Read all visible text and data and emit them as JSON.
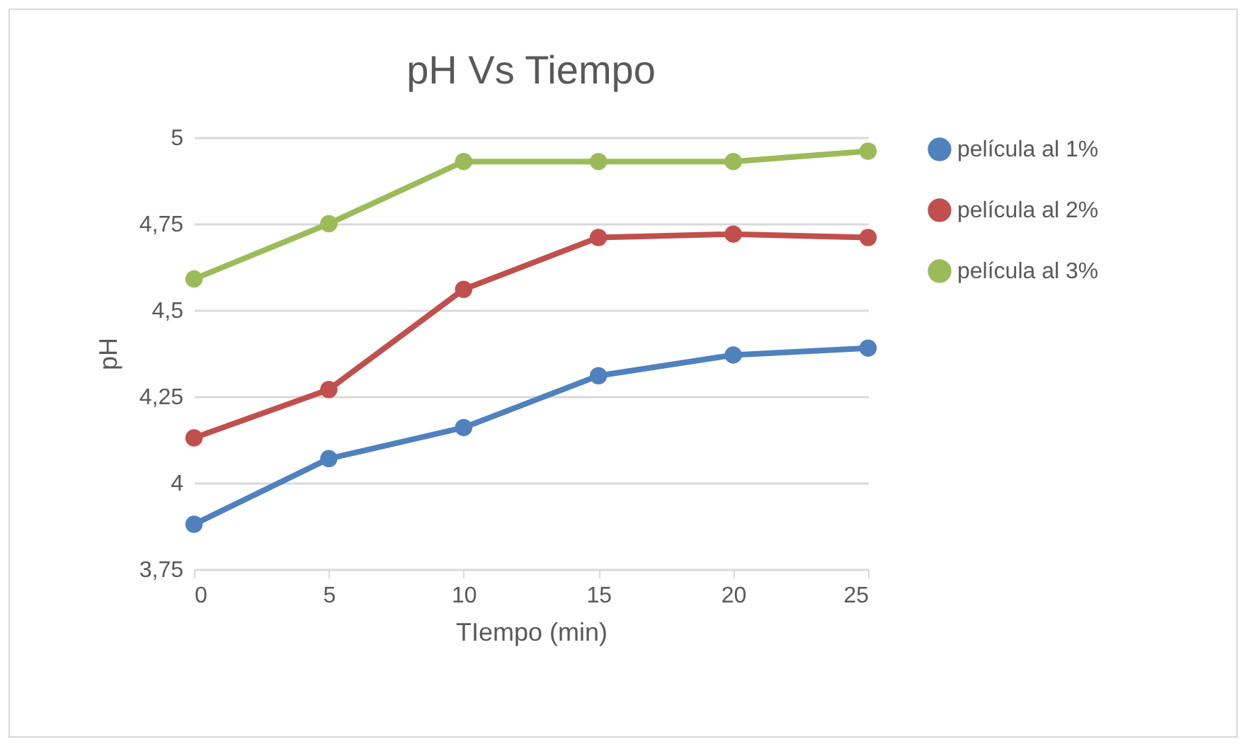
{
  "chart_data": {
    "type": "line",
    "title": "pH Vs Tiempo",
    "xlabel": "TIempo (min)",
    "ylabel": "pH",
    "x": [
      0,
      5,
      10,
      15,
      20,
      25
    ],
    "series": [
      {
        "name": "película al 1%",
        "color": "#4f81bd",
        "values": [
          3.88,
          4.07,
          4.16,
          4.31,
          4.37,
          4.39
        ]
      },
      {
        "name": "película al 2%",
        "color": "#c0504d",
        "values": [
          4.13,
          4.27,
          4.56,
          4.71,
          4.72,
          4.71
        ]
      },
      {
        "name": "película al 3%",
        "color": "#9bbb59",
        "values": [
          4.59,
          4.75,
          4.93,
          4.93,
          4.93,
          4.96
        ]
      }
    ],
    "xlim": [
      0,
      25
    ],
    "xticks": [
      0,
      5,
      10,
      15,
      20,
      25
    ],
    "ylim": [
      3.75,
      5
    ],
    "yticks": [
      {
        "value": 3.75,
        "label": "3,75"
      },
      4,
      {
        "value": 4.25,
        "label": "4,25"
      },
      {
        "value": 4.5,
        "label": "4,5"
      },
      {
        "value": 4.75,
        "label": "4,75"
      },
      5
    ],
    "grid": "y",
    "legend": "right",
    "marker": "circle",
    "line_style": "solid"
  }
}
